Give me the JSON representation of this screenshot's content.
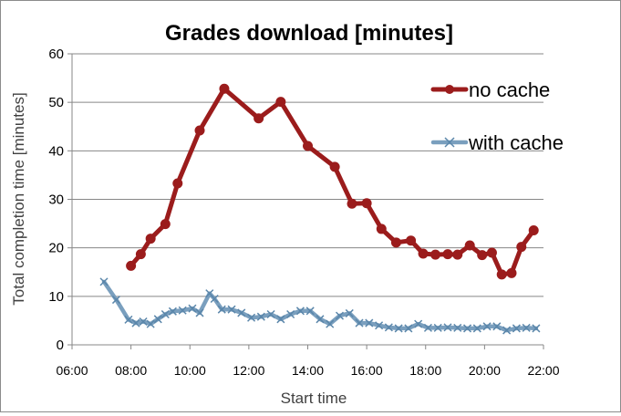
{
  "chart_data": {
    "type": "line",
    "title": "Grades download [minutes]",
    "xlabel": "Start time",
    "ylabel": "Total completion time [minutes]",
    "ylim": [
      0,
      60
    ],
    "yticks": [
      0,
      10,
      20,
      30,
      40,
      50,
      60
    ],
    "xlim": [
      "06:00",
      "22:00"
    ],
    "xticks": [
      "06:00",
      "08:00",
      "10:00",
      "12:00",
      "14:00",
      "16:00",
      "18:00",
      "20:00",
      "22:00"
    ],
    "grid": "horizontal",
    "legend_position": "top-right",
    "series": [
      {
        "name": "no cache",
        "color": "#9b1c1c",
        "marker": "circle",
        "points": [
          [
            "08:00",
            16.3
          ],
          [
            "08:20",
            18.7
          ],
          [
            "08:40",
            21.9
          ],
          [
            "09:10",
            24.9
          ],
          [
            "09:35",
            33.3
          ],
          [
            "10:20",
            44.2
          ],
          [
            "11:10",
            52.8
          ],
          [
            "12:20",
            46.7
          ],
          [
            "13:05",
            50.1
          ],
          [
            "14:00",
            41.0
          ],
          [
            "14:55",
            36.7
          ],
          [
            "15:30",
            29.1
          ],
          [
            "16:00",
            29.2
          ],
          [
            "16:30",
            23.9
          ],
          [
            "17:00",
            21.1
          ],
          [
            "17:30",
            21.5
          ],
          [
            "17:55",
            18.8
          ],
          [
            "18:20",
            18.6
          ],
          [
            "18:45",
            18.7
          ],
          [
            "19:05",
            18.6
          ],
          [
            "19:30",
            20.5
          ],
          [
            "19:55",
            18.5
          ],
          [
            "20:15",
            19.0
          ],
          [
            "20:35",
            14.5
          ],
          [
            "20:55",
            14.8
          ],
          [
            "21:15",
            20.2
          ],
          [
            "21:40",
            23.6
          ]
        ]
      },
      {
        "name": "with cache",
        "color": "#7a9fbe",
        "marker": "x",
        "points": [
          [
            "07:05",
            13.0
          ],
          [
            "07:30",
            9.3
          ],
          [
            "07:55",
            5.2
          ],
          [
            "08:10",
            4.5
          ],
          [
            "08:25",
            4.8
          ],
          [
            "08:40",
            4.3
          ],
          [
            "08:55",
            5.3
          ],
          [
            "09:10",
            6.3
          ],
          [
            "09:25",
            6.9
          ],
          [
            "09:45",
            7.1
          ],
          [
            "10:05",
            7.5
          ],
          [
            "10:20",
            6.6
          ],
          [
            "10:40",
            10.6
          ],
          [
            "10:50",
            9.5
          ],
          [
            "11:05",
            7.3
          ],
          [
            "11:25",
            7.3
          ],
          [
            "11:45",
            6.6
          ],
          [
            "12:05",
            5.6
          ],
          [
            "12:25",
            5.8
          ],
          [
            "12:45",
            6.3
          ],
          [
            "13:05",
            5.3
          ],
          [
            "13:25",
            6.3
          ],
          [
            "13:45",
            7.0
          ],
          [
            "14:05",
            7.0
          ],
          [
            "14:25",
            5.3
          ],
          [
            "14:45",
            4.3
          ],
          [
            "15:05",
            6.0
          ],
          [
            "15:25",
            6.5
          ],
          [
            "15:45",
            4.5
          ],
          [
            "16:05",
            4.5
          ],
          [
            "16:25",
            4.0
          ],
          [
            "16:45",
            3.6
          ],
          [
            "17:05",
            3.4
          ],
          [
            "17:25",
            3.4
          ],
          [
            "17:45",
            4.3
          ],
          [
            "18:05",
            3.5
          ],
          [
            "18:25",
            3.5
          ],
          [
            "18:45",
            3.6
          ],
          [
            "19:05",
            3.5
          ],
          [
            "19:25",
            3.4
          ],
          [
            "19:45",
            3.4
          ],
          [
            "20:05",
            3.8
          ],
          [
            "20:25",
            3.8
          ],
          [
            "20:45",
            3.0
          ],
          [
            "21:05",
            3.4
          ],
          [
            "21:25",
            3.5
          ],
          [
            "21:45",
            3.4
          ]
        ]
      }
    ]
  }
}
